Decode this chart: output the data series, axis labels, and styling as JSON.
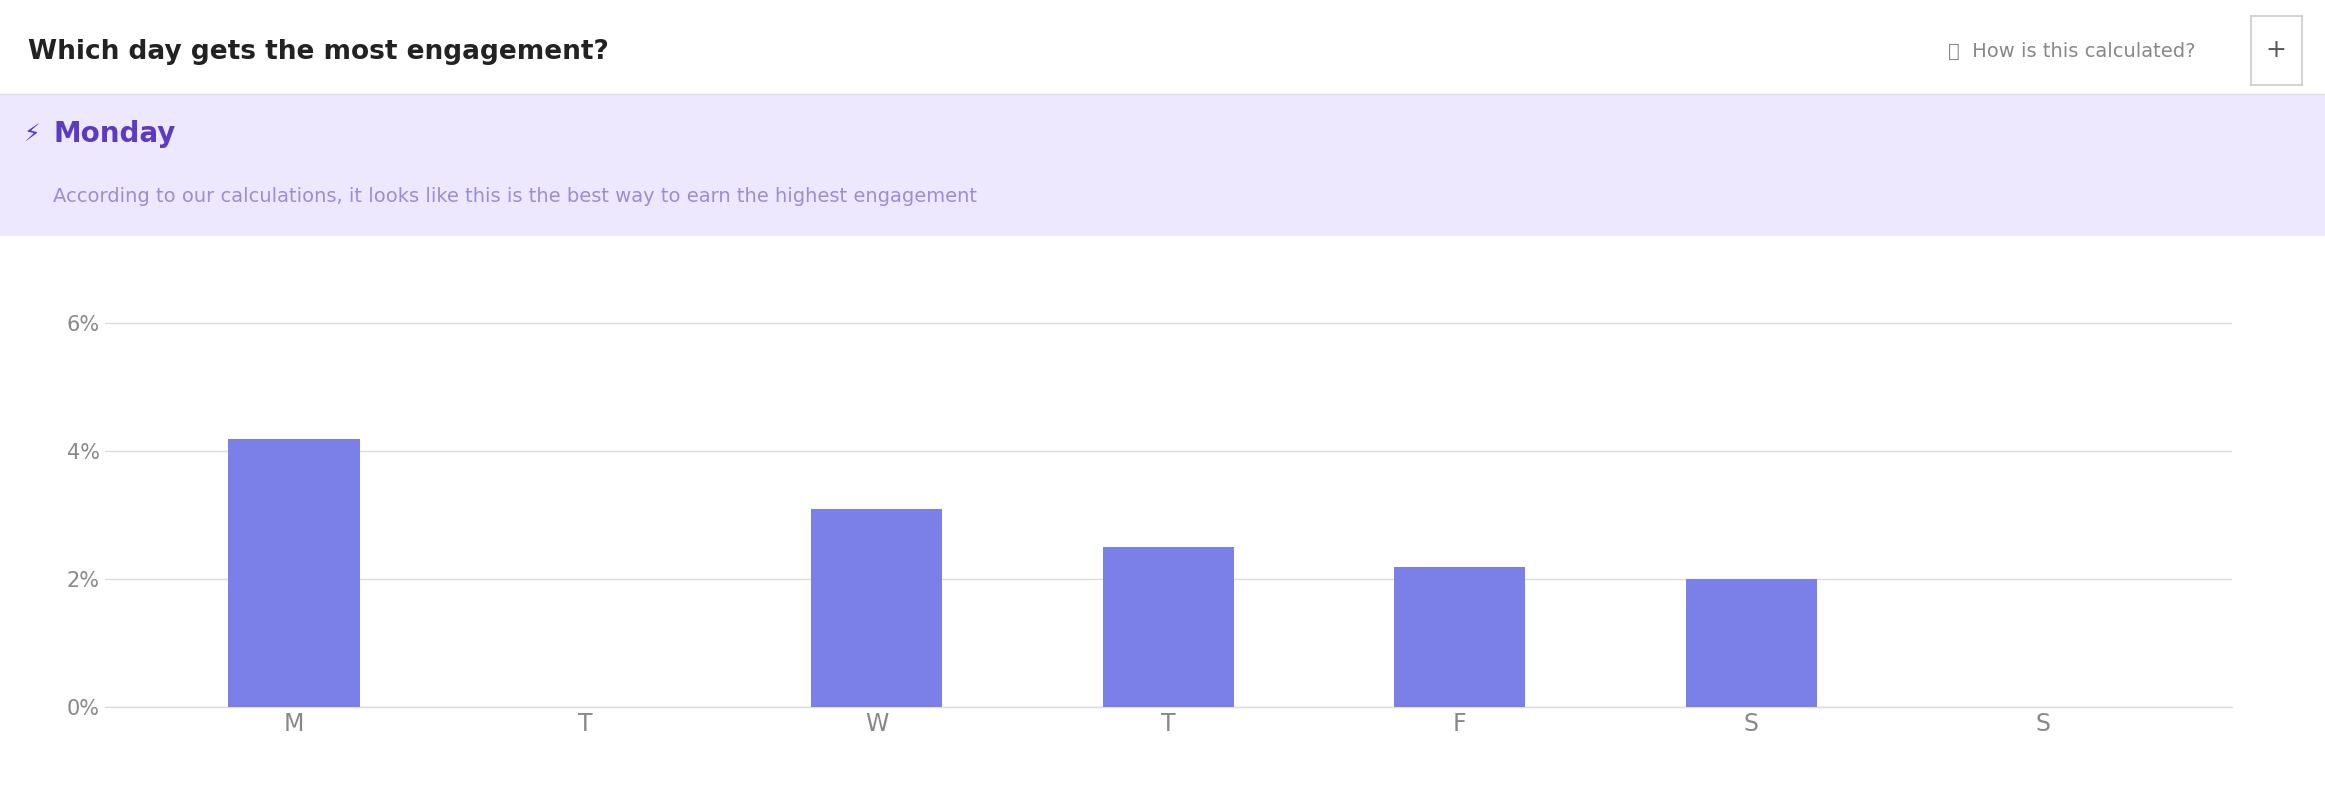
{
  "title": "Which day gets the most engagement?",
  "highlight_day": "Monday",
  "highlight_subtitle": "According to our calculations, it looks like this is the best way to earn the highest engagement",
  "categories": [
    "M",
    "T",
    "W",
    "T",
    "F",
    "S",
    "S"
  ],
  "values": [
    4.2,
    0,
    3.1,
    2.5,
    2.2,
    2.0,
    0
  ],
  "bar_color": "#7B7FE8",
  "highlight_bg": "#EEE8FF",
  "highlight_title_color": "#5C3BC2",
  "highlight_subtitle_color": "#9B8ED4",
  "title_color": "#222222",
  "grid_color": "#DDDDDD",
  "tick_color": "#888888",
  "ylim": [
    0,
    7.0
  ],
  "yticks": [
    0,
    2,
    4,
    6
  ],
  "ytick_labels": [
    "0%",
    "2%",
    "4%",
    "6%"
  ],
  "background_color": "#FFFFFF",
  "right_label": "ⓘ  How is this calculated?",
  "right_button": "+",
  "figsize": [
    23.25,
    7.86
  ],
  "dpi": 100
}
